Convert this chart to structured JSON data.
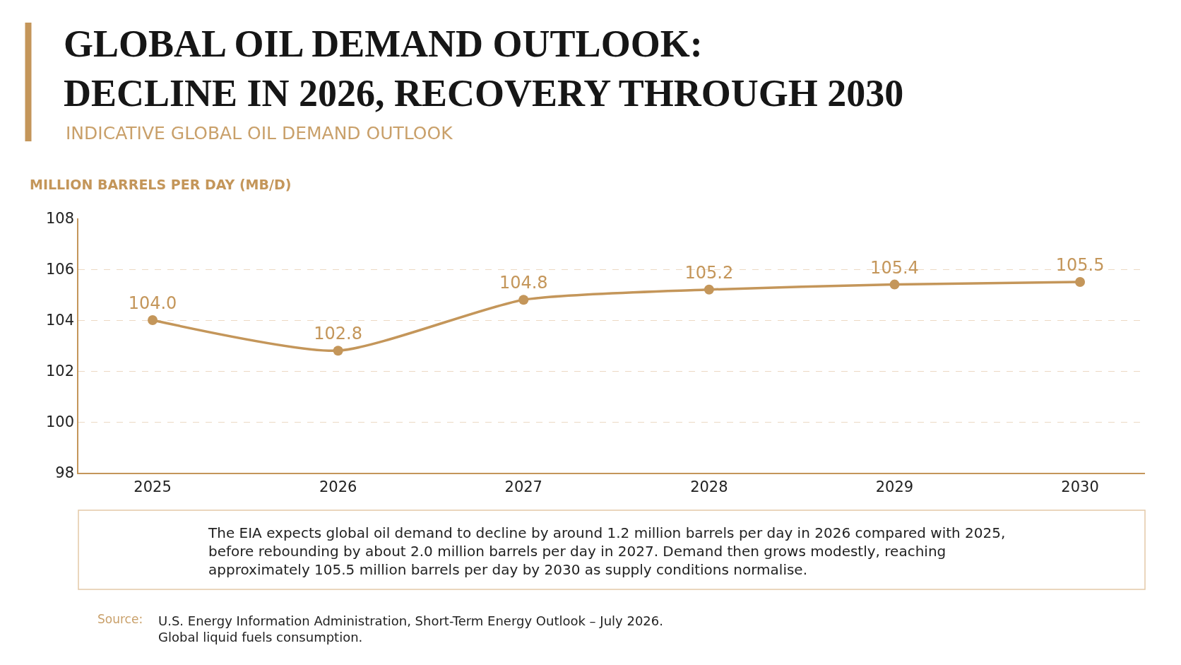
{
  "chart_data": {
    "type": "line",
    "title": "GLOBAL OIL DEMAND OUTLOOK:\nDECLINE IN 2026, RECOVERY THROUGH 2030",
    "subtitle": "INDICATIVE GLOBAL OIL DEMAND OUTLOOK",
    "ylabel": "MILLION BARRELS PER DAY (MB/D)",
    "categories": [
      "2025",
      "2026",
      "2027",
      "2028",
      "2029",
      "2030"
    ],
    "values": [
      104.0,
      102.8,
      104.8,
      105.2,
      105.4,
      105.5
    ],
    "value_labels": [
      "104.0",
      "102.8",
      "104.8",
      "105.2",
      "105.4",
      "105.5"
    ],
    "color": "#c4965a",
    "ylim": [
      98,
      108
    ],
    "yticks": [
      98,
      100,
      102,
      104,
      106,
      108
    ],
    "grid": "y",
    "marker": "circle",
    "line_style": "solid",
    "annotations": [
      "The EIA expects global oil demand to decline by around 1.2 million barrels per day in 2026 compared with 2025,\nbefore rebounding by about 2.0 million barrels per day in 2027. Demand then grows modestly, reaching\napproximately 105.5 million barrels per day by 2030 as supply conditions normalise.",
      "Source:",
      "U.S. Energy Information Administration, Short-Term Energy Outlook – July 2026.\nGlobal liquid fuels consumption."
    ]
  }
}
